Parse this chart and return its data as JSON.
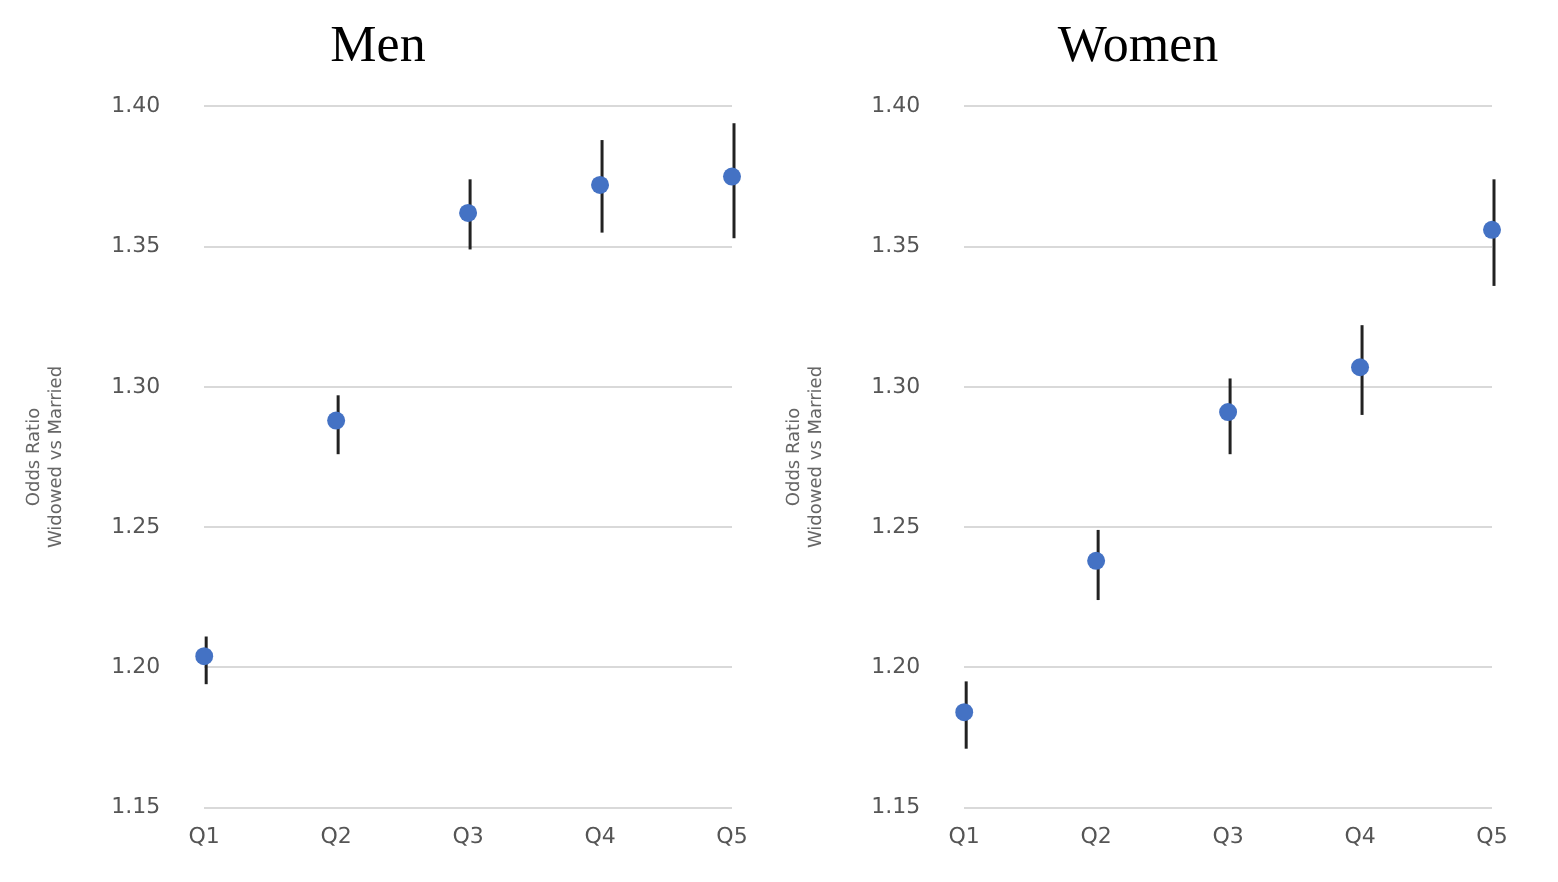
{
  "chart_data": [
    {
      "type": "scatter",
      "title": "Men",
      "ylabel": "Odds Ratio\nWidowed vs Married",
      "categories": [
        "Q1",
        "Q2",
        "Q3",
        "Q4",
        "Q5"
      ],
      "values": [
        1.204,
        1.288,
        1.362,
        1.372,
        1.375
      ],
      "errors": [
        [
          1.194,
          1.211
        ],
        [
          1.276,
          1.297
        ],
        [
          1.349,
          1.374
        ],
        [
          1.355,
          1.388
        ],
        [
          1.353,
          1.394
        ]
      ],
      "color": "#4472c4",
      "marker": "circle",
      "ylim": [
        1.15,
        1.4
      ],
      "yticks": [
        {
          "value": 1.15,
          "label": "1.15"
        },
        {
          "value": 1.2,
          "label": "1.20"
        },
        {
          "value": 1.25,
          "label": "1.25"
        },
        {
          "value": 1.3,
          "label": "1.30"
        },
        {
          "value": 1.35,
          "label": "1.35"
        },
        {
          "value": 1.4,
          "label": "1.40"
        }
      ],
      "grid": "y"
    },
    {
      "type": "scatter",
      "title": "Women",
      "ylabel": "Odds Ratio\nWidowed vs Married",
      "categories": [
        "Q1",
        "Q2",
        "Q3",
        "Q4",
        "Q5"
      ],
      "values": [
        1.184,
        1.238,
        1.291,
        1.307,
        1.356
      ],
      "errors": [
        [
          1.171,
          1.195
        ],
        [
          1.224,
          1.249
        ],
        [
          1.276,
          1.303
        ],
        [
          1.29,
          1.322
        ],
        [
          1.336,
          1.374
        ]
      ],
      "color": "#4472c4",
      "marker": "circle",
      "ylim": [
        1.15,
        1.4
      ],
      "yticks": [
        {
          "value": 1.15,
          "label": "1.15"
        },
        {
          "value": 1.2,
          "label": "1.20"
        },
        {
          "value": 1.25,
          "label": "1.25"
        },
        {
          "value": 1.3,
          "label": "1.30"
        },
        {
          "value": 1.35,
          "label": "1.35"
        },
        {
          "value": 1.4,
          "label": "1.40"
        }
      ],
      "grid": "y"
    }
  ]
}
